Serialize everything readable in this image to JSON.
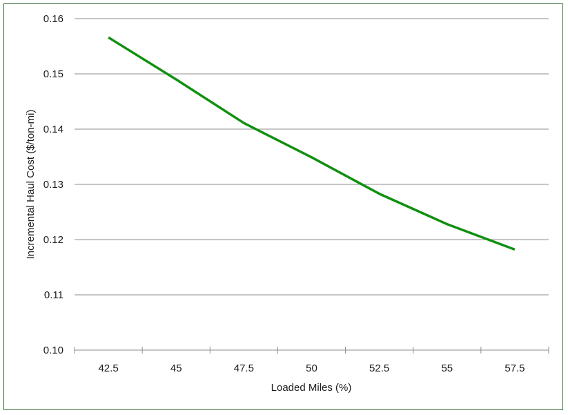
{
  "chart_data": {
    "type": "line",
    "title": "",
    "xlabel": "Loaded Miles (%)",
    "ylabel": "Incremental Haul Cost ($/ton-mi)",
    "x_tick_labels": [
      "42.5",
      "45",
      "47.5",
      "50",
      "52.5",
      "55",
      "57.5"
    ],
    "y_tick_labels": [
      "0.10",
      "0.11",
      "0.12",
      "0.13",
      "0.14",
      "0.15",
      "0.16"
    ],
    "ylim": [
      0.1,
      0.16
    ],
    "grid": true,
    "legend": "none",
    "series": [
      {
        "color": "#109010",
        "x": [
          42.5,
          45,
          47.5,
          50,
          52.5,
          55,
          57.5
        ],
        "values": [
          0.1566,
          0.149,
          0.1411,
          0.1349,
          0.1283,
          0.1228,
          0.1182
        ]
      }
    ],
    "colors": {
      "line": "#109010",
      "grid": "#8c8c8c",
      "frame": "#2e6b2e"
    }
  }
}
